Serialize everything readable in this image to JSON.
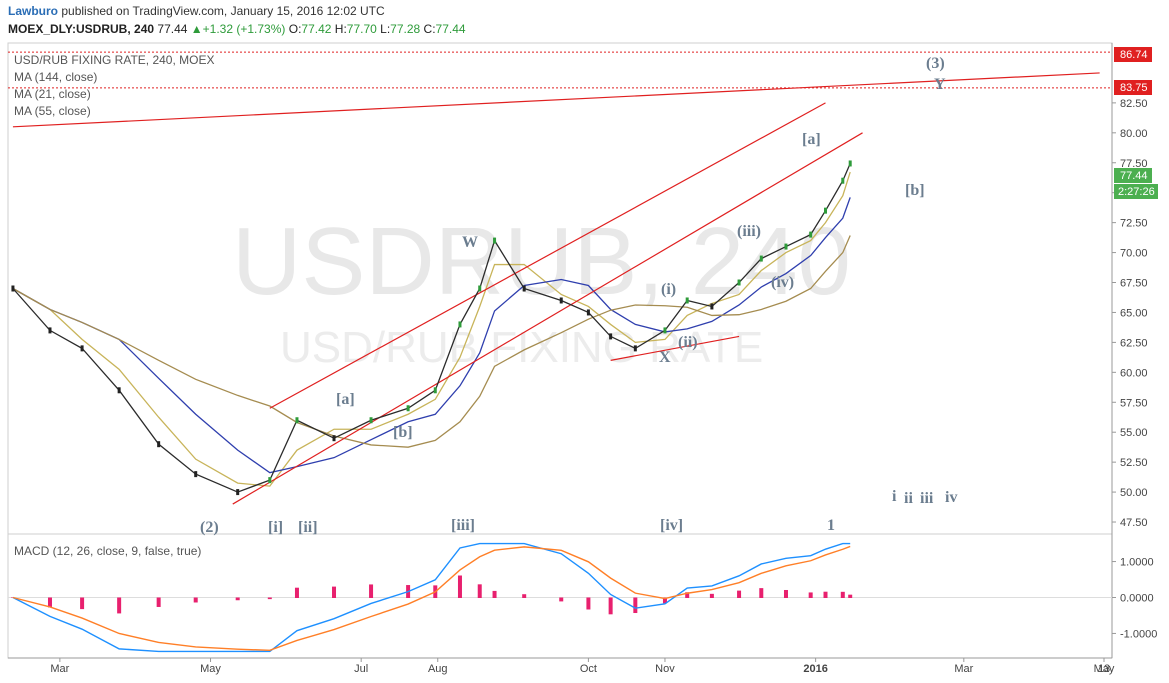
{
  "header": {
    "author": "Lawburo",
    "published": "published on TradingView.com, January 15, 2016 12:02 UTC",
    "symbol": "MOEX_DLY:USDRUB, 240",
    "last": "77.44",
    "change": "+1.32 (+1.73%)",
    "o_label": "O:",
    "o": "77.42",
    "h_label": "H:",
    "h": "77.70",
    "l_label": "L:",
    "l": "77.28",
    "c_label": "C:",
    "c": "77.44"
  },
  "watermark": {
    "symbol": "USDRUB, 240",
    "description": "USD/RUB FIXING RATE"
  },
  "legend": {
    "title": "USD/RUB FIXING RATE, 240, MOEX",
    "ma144": "MA (144, close)",
    "ma21": "MA (21, close)",
    "ma55": "MA (55, close)"
  },
  "price_axis": {
    "ticks": [
      "82.50",
      "80.00",
      "77.50",
      "75.00",
      "72.50",
      "70.00",
      "67.50",
      "65.00",
      "62.50",
      "60.00",
      "57.50",
      "55.00",
      "52.50",
      "50.00",
      "47.50"
    ],
    "flag_86": "86.74",
    "flag_83": "83.75",
    "flag_last": "77.44",
    "flag_timer": "2:27:26"
  },
  "macd_axis": {
    "ticks": [
      "1.0000",
      "0.0000",
      "-1.0000"
    ]
  },
  "macd_legend": "MACD (12, 26, close, 9, false, true)",
  "time_axis": [
    "Mar",
    "May",
    "Jul",
    "Aug",
    "Oct",
    "Nov",
    "2016",
    "Mar",
    "May",
    "13"
  ],
  "waves": {
    "w2": "(2)",
    "wi": "[i]",
    "wii": "[ii]",
    "wa1": "[a]",
    "wb1": "[b]",
    "wiii": "[iii]",
    "W": "W",
    "X": "X",
    "wiv": "[iv]",
    "pi": "(i)",
    "pii": "(ii)",
    "piii": "(iii)",
    "piv": "(iv)",
    "wa2": "[a]",
    "wb2": "[b]",
    "p3": "(3)",
    "Y": "Y",
    "one": "1",
    "ri": "i",
    "rii": "ii",
    "riii": "iii",
    "riv": "iv"
  },
  "colors": {
    "up": "#2e9b3a",
    "down": "#222222",
    "trend": "#e02020",
    "ma144": "#a58c50",
    "ma21": "#c8b45a",
    "ma55": "#2f3fae",
    "macd": "#1e90ff",
    "signal": "#ff7f27",
    "hist": "#e8206e",
    "flag": "#e02020",
    "flag_timer": "#4caf50"
  },
  "chart_data": {
    "type": "line",
    "title": "USD/RUB FIXING RATE, 240, MOEX",
    "xlabel": "",
    "ylabel": "",
    "ylim": [
      46.5,
      87.5
    ],
    "x": [
      "2015-02-10",
      "2015-02-25",
      "2015-03-10",
      "2015-03-25",
      "2015-04-10",
      "2015-04-25",
      "2015-05-12",
      "2015-05-25",
      "2015-06-05",
      "2015-06-20",
      "2015-07-05",
      "2015-07-20",
      "2015-07-31",
      "2015-08-10",
      "2015-08-18",
      "2015-08-24",
      "2015-09-05",
      "2015-09-20",
      "2015-10-01",
      "2015-10-10",
      "2015-10-20",
      "2015-11-01",
      "2015-11-10",
      "2015-11-20",
      "2015-12-01",
      "2015-12-10",
      "2015-12-20",
      "2015-12-30",
      "2016-01-05",
      "2016-01-12",
      "2016-01-15"
    ],
    "series": [
      {
        "values": [
          67,
          63.5,
          62,
          58.5,
          54,
          51.5,
          50,
          51,
          56,
          54.5,
          56,
          57,
          58.5,
          64,
          67,
          71,
          67,
          66,
          65,
          63,
          62,
          63.5,
          66,
          65.5,
          67.5,
          69.5,
          70.5,
          71.5,
          73.5,
          76,
          77.44
        ]
      }
    ],
    "trend_lines": [
      {
        "x": [
          "2015-02-10",
          "2016-04-25"
        ],
        "y": [
          80.5,
          85.0
        ]
      },
      {
        "x": [
          "2015-05-25",
          "2016-01-05"
        ],
        "y": [
          57,
          82.5
        ]
      },
      {
        "x": [
          "2015-05-10",
          "2016-01-20"
        ],
        "y": [
          49,
          80
        ]
      },
      {
        "x": [
          "2015-10-10",
          "2015-12-01"
        ],
        "y": [
          61,
          63
        ]
      }
    ],
    "levels": [
      86.74,
      83.75
    ],
    "macd": {
      "ylim": [
        -1.6,
        1.6
      ],
      "ticks": [
        1.0,
        0.0,
        -1.0
      ]
    }
  }
}
